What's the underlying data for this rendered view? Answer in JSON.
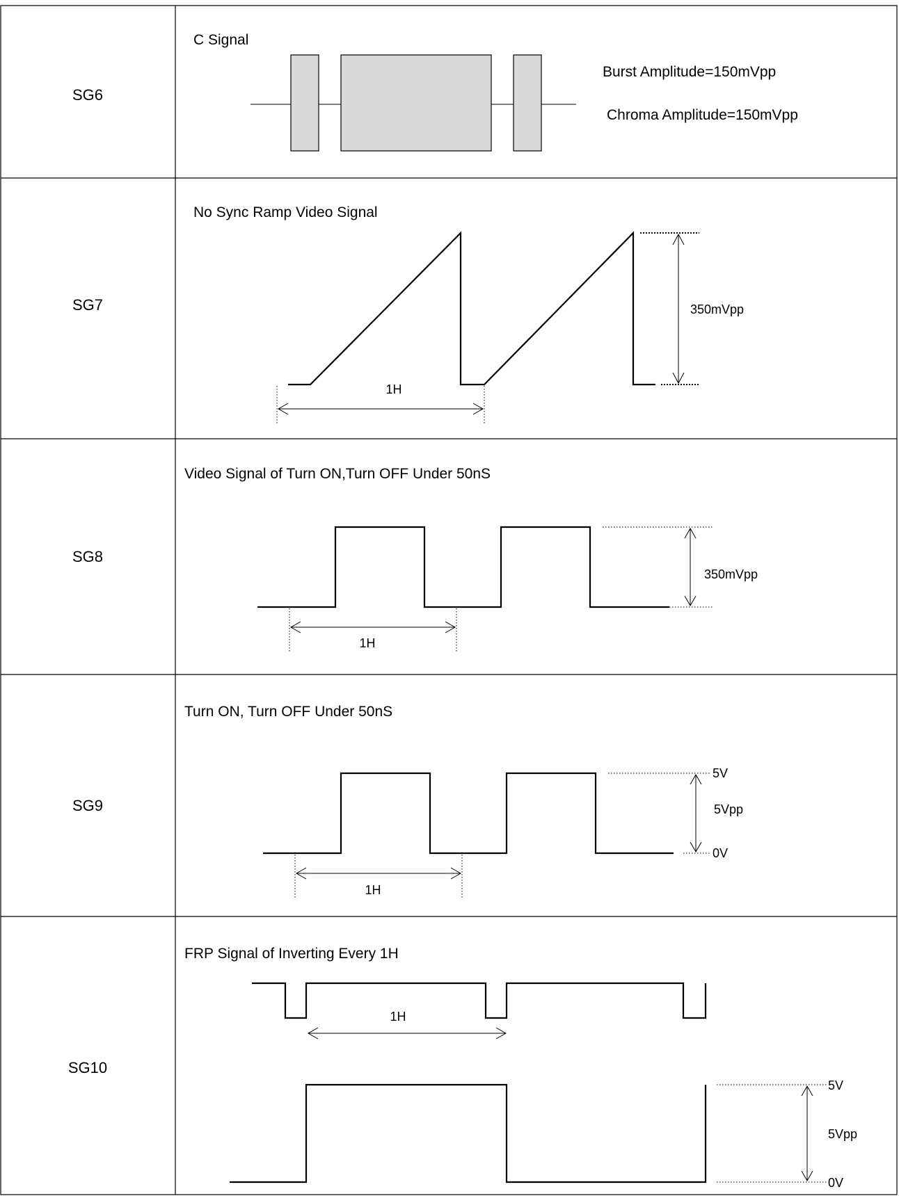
{
  "rows": [
    {
      "id": "SG6",
      "title": "C Signal",
      "notes": [
        "Burst Amplitude=150mVpp",
        "Chroma Amplitude=150mVpp"
      ]
    },
    {
      "id": "SG7",
      "title": "No Sync Ramp Video Signal",
      "period": "1H",
      "amplitude": "350mVpp"
    },
    {
      "id": "SG8",
      "title": "Video Signal of Turn ON,Turn OFF Under 50nS",
      "period": "1H",
      "amplitude": "350mVpp"
    },
    {
      "id": "SG9",
      "title": "Turn ON, Turn OFF Under 50nS",
      "period": "1H",
      "amplitude": "5Vpp",
      "high_level": "5V",
      "low_level": "0V"
    },
    {
      "id": "SG10",
      "title": "FRP Signal of Inverting Every 1H",
      "period": "1H",
      "amplitude": "5Vpp",
      "high_level": "5V",
      "low_level": "0V"
    }
  ]
}
